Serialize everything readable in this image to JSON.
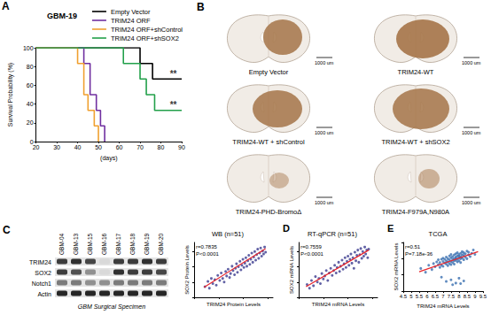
{
  "chart_data": [
    {
      "panel_label": "A",
      "type": "line",
      "title": "GBM-19",
      "x_label": "(days)",
      "y_label": "Survival Probability (%)",
      "xlim": [
        20,
        90
      ],
      "xticks": [
        20,
        30,
        40,
        50,
        60,
        70,
        80,
        90
      ],
      "ylim": [
        0,
        100
      ],
      "yticks": [
        0,
        20,
        40,
        60,
        80,
        100
      ],
      "grid": false,
      "legend": "top right",
      "line_style": "step",
      "series": [
        {
          "name": "Empty Vector",
          "color": "#000000",
          "x": [
            20,
            70,
            76,
            90
          ],
          "values": [
            100,
            83.3,
            66.7,
            66.7
          ]
        },
        {
          "name": "TRIM24 ORF",
          "color": "#7030a0",
          "x": [
            20,
            43,
            46,
            49,
            51,
            53
          ],
          "values": [
            100,
            83.3,
            50,
            33.3,
            16.7,
            0
          ]
        },
        {
          "name": "TRIM24 ORF+shControl",
          "color": "#f0a030",
          "x": [
            20,
            40,
            43,
            45,
            48,
            50
          ],
          "values": [
            100,
            83.3,
            50,
            33.3,
            16.7,
            0
          ]
        },
        {
          "name": "TRIM24 ORF+shSOX2",
          "color": "#22a04a",
          "x": [
            20,
            62,
            70,
            73,
            77,
            90
          ],
          "values": [
            100,
            83.3,
            66.7,
            50,
            33.3,
            33.3
          ]
        }
      ],
      "annotations": [
        {
          "text": "**",
          "x": 86,
          "y": 66.7
        },
        {
          "text": "**",
          "x": 86,
          "y": 33.3
        }
      ]
    },
    {
      "type": "scatter",
      "title": "WB (n=51)",
      "stats": [
        "r=0.7835",
        "P<0.0001"
      ],
      "x_label": "TRIM24 Protein Levels",
      "y_label": "SOX2 Protein Levels",
      "xlim": [
        0,
        1.6
      ],
      "xticks": [
        0,
        0.5,
        1,
        1.5
      ],
      "ylim": [
        0,
        1.8
      ],
      "yticks": [
        0,
        0.5,
        1,
        1.5
      ],
      "tick_labels": false,
      "grid": false,
      "marker": "circle",
      "color": "#3b3b8f",
      "x": [
        0.22,
        0.28,
        0.31,
        0.35,
        0.38,
        0.42,
        0.45,
        0.48,
        0.52,
        0.55,
        0.58,
        0.61,
        0.64,
        0.66,
        0.69,
        0.72,
        0.74,
        0.77,
        0.79,
        0.82,
        0.84,
        0.86,
        0.88,
        0.9,
        0.93,
        0.95,
        0.97,
        0.99,
        1.01,
        1.03,
        1.05,
        1.07,
        1.09,
        1.11,
        1.13,
        1.15,
        1.17,
        1.19,
        1.21,
        1.23,
        1.25,
        1.27,
        1.29,
        1.31,
        1.33,
        1.35,
        1.37,
        1.39,
        1.41,
        1.43,
        1.45
      ],
      "values": [
        0.35,
        0.52,
        0.3,
        0.62,
        0.45,
        0.58,
        0.4,
        0.72,
        0.55,
        0.8,
        0.62,
        0.5,
        0.85,
        0.7,
        0.92,
        0.65,
        0.78,
        1.02,
        0.88,
        0.74,
        0.95,
        1.1,
        0.82,
        1.0,
        1.18,
        0.9,
        1.05,
        1.25,
        0.98,
        1.12,
        1.3,
        1.02,
        1.2,
        1.38,
        1.08,
        1.25,
        1.45,
        1.15,
        1.32,
        1.5,
        1.22,
        1.4,
        1.58,
        1.28,
        1.45,
        1.62,
        1.35,
        1.52,
        1.42,
        1.65,
        1.48
      ],
      "fit": {
        "color": "#e8232a",
        "x": [
          0.2,
          1.45
        ],
        "values": [
          0.33,
          1.6
        ]
      }
    },
    {
      "panel_label": "D",
      "type": "scatter",
      "title": "RT-qPCR (n=51)",
      "stats": [
        "r=0.7559",
        "P<0.0001"
      ],
      "x_label": "TRIM24 mRNA Levels",
      "y_label": "SOX2 mRNA Levels",
      "xlim": [
        0,
        1.6
      ],
      "xticks": [
        0,
        0.5,
        1,
        1.5
      ],
      "ylim": [
        0,
        1.8
      ],
      "yticks": [
        0,
        0.5,
        1,
        1.5
      ],
      "tick_labels": false,
      "grid": false,
      "marker": "circle",
      "color": "#3b3b8f",
      "x": [
        0.17,
        0.22,
        0.26,
        0.3,
        0.34,
        0.38,
        0.41,
        0.44,
        0.47,
        0.5,
        0.53,
        0.56,
        0.59,
        0.62,
        0.65,
        0.68,
        0.71,
        0.73,
        0.76,
        0.78,
        0.81,
        0.83,
        0.85,
        0.88,
        0.9,
        0.92,
        0.94,
        0.96,
        0.98,
        1.0,
        1.02,
        1.04,
        1.06,
        1.08,
        1.1,
        1.12,
        1.14,
        1.16,
        1.18,
        1.2,
        1.22,
        1.24,
        1.26,
        1.28,
        1.3,
        1.32,
        1.34,
        1.36,
        1.38,
        1.4,
        1.42
      ],
      "values": [
        0.42,
        0.3,
        0.55,
        0.38,
        0.68,
        0.5,
        0.62,
        0.45,
        0.78,
        0.6,
        0.7,
        0.88,
        0.55,
        0.8,
        0.95,
        0.72,
        0.88,
        1.05,
        0.8,
        0.98,
        1.15,
        0.85,
        1.02,
        1.22,
        0.92,
        1.1,
        1.3,
        0.98,
        1.18,
        1.35,
        1.05,
        1.25,
        1.42,
        1.12,
        1.3,
        0.95,
        1.48,
        1.2,
        1.38,
        1.55,
        1.15,
        1.4,
        1.6,
        1.28,
        1.5,
        1.35,
        1.65,
        1.42,
        1.55,
        1.3,
        1.58
      ],
      "fit": {
        "color": "#e8232a",
        "x": [
          0.15,
          1.42
        ],
        "values": [
          0.35,
          1.55
        ]
      }
    },
    {
      "panel_label": "E",
      "type": "scatter",
      "title": "TCGA",
      "stats": [
        "r=0.51",
        "P=7.18e-36"
      ],
      "x_label": "TRIM24 mRNA Levels",
      "y_label": "SOX2 mRNA Levels",
      "xlim": [
        4.5,
        9.5
      ],
      "xticks": [
        4.5,
        5,
        5.5,
        6,
        6.5,
        7,
        7.5,
        8,
        8.5,
        9,
        9.5
      ],
      "ylim": [
        3,
        12
      ],
      "yticks": [
        3,
        6,
        9,
        12
      ],
      "tick_labels": "x",
      "grid": false,
      "marker": "circle",
      "color": "#3a6fb0",
      "x": [
        5.6,
        5.9,
        6.1,
        6.3,
        6.4,
        6.5,
        6.6,
        6.7,
        6.7,
        6.8,
        6.8,
        6.9,
        6.9,
        7.0,
        7.0,
        7.0,
        7.1,
        7.1,
        7.2,
        7.2,
        7.2,
        7.3,
        7.3,
        7.3,
        7.4,
        7.4,
        7.4,
        7.5,
        7.5,
        7.5,
        7.5,
        7.6,
        7.6,
        7.6,
        7.7,
        7.7,
        7.7,
        7.7,
        7.8,
        7.8,
        7.8,
        7.8,
        7.9,
        7.9,
        7.9,
        7.9,
        8.0,
        8.0,
        8.0,
        8.0,
        8.1,
        8.1,
        8.1,
        8.1,
        8.2,
        8.2,
        8.2,
        8.3,
        8.3,
        8.3,
        8.4,
        8.4,
        8.5,
        8.5,
        8.6,
        8.6,
        8.7,
        8.8,
        8.9,
        9.0,
        7.2,
        7.5,
        7.8,
        8.0,
        7.6,
        8.3,
        6.9,
        8.1
      ],
      "values": [
        7.2,
        6.5,
        7.8,
        7.0,
        8.1,
        7.5,
        8.4,
        7.9,
        8.8,
        7.4,
        8.3,
        8.9,
        7.8,
        8.5,
        9.1,
        7.6,
        8.2,
        8.9,
        9.3,
        8.0,
        8.6,
        9.0,
        7.7,
        8.4,
        9.5,
        8.8,
        8.1,
        9.2,
        8.5,
        9.8,
        7.9,
        8.9,
        9.4,
        8.3,
        9.0,
        9.7,
        8.6,
        8.0,
        9.3,
        9.9,
        8.7,
        9.1,
        9.5,
        8.4,
        10.1,
        8.9,
        9.2,
        9.8,
        8.6,
        9.5,
        10.0,
        9.0,
        9.4,
        8.3,
        9.7,
        10.3,
        9.1,
        9.6,
        8.8,
        10.1,
        9.3,
        9.9,
        10.4,
        9.0,
        9.7,
        10.2,
        9.4,
        10.0,
        10.6,
        9.8,
        4.8,
        5.1,
        4.5,
        5.4,
        4.2,
        4.9,
        5.6,
        4.4
      ],
      "fit": {
        "color": "#e8232a",
        "x": [
          5.5,
          9.2
        ],
        "values": [
          6.6,
          10.3
        ]
      }
    }
  ],
  "panel_b": {
    "panel_label": "B",
    "scale_label": "1000 um",
    "images": [
      "Empty Vector",
      "TRIM24-WT",
      "TRIM24-WT + shControl",
      "TRIM24-WT + shSOX2",
      "TRIM24-PHD-BromoΔ",
      "TRIM24-F979A,N980A"
    ]
  },
  "panel_c_blot": {
    "panel_label": "C",
    "caption": "GBM Surgical Specimen",
    "lanes": [
      "GBM-04",
      "GBM-13",
      "GBM-15",
      "GBM-16",
      "GBM-17",
      "GBM-18",
      "GBM-19",
      "GBM-20"
    ],
    "rows": [
      {
        "name": "TRIM24",
        "band_intensity": [
          0.8,
          0.85,
          0.75,
          0.05,
          0.8,
          0.8,
          0.85,
          0.8
        ]
      },
      {
        "name": "SOX2",
        "band_intensity": [
          0.8,
          0.7,
          0.4,
          0.05,
          0.85,
          0.8,
          0.8,
          0.75
        ]
      },
      {
        "name": "Notch1",
        "band_intensity": [
          0.5,
          0.5,
          0.4,
          0.4,
          0.5,
          0.5,
          0.5,
          0.5
        ]
      },
      {
        "name": "Actin",
        "band_intensity": [
          0.9,
          0.9,
          0.9,
          0.9,
          0.9,
          0.9,
          0.9,
          0.9
        ]
      }
    ]
  }
}
